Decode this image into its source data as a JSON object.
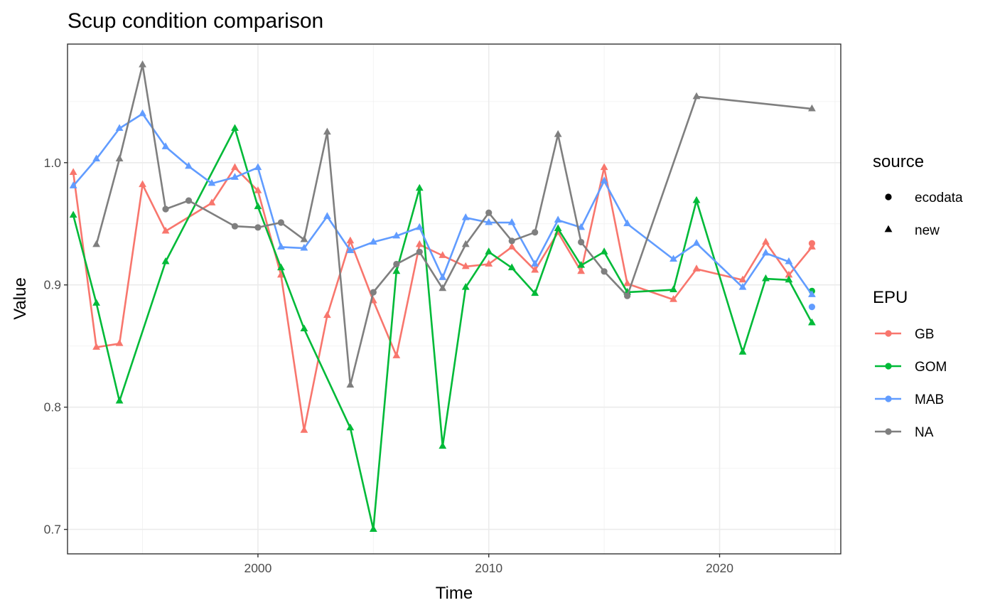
{
  "chart_data": {
    "type": "line",
    "title": "Scup condition comparison",
    "xlabel": "Time",
    "ylabel": "Value",
    "xlim": [
      1991.75,
      2025.25
    ],
    "ylim": [
      0.68,
      1.097
    ],
    "x_ticks": [
      2000,
      2010,
      2020
    ],
    "x_tick_labels": [
      "2000",
      "2010",
      "2020"
    ],
    "y_ticks": [
      0.7,
      0.8,
      0.9,
      1.0
    ],
    "y_tick_labels": [
      "0.7",
      "0.8",
      "0.9",
      "1.0"
    ],
    "grid": true,
    "legend": {
      "placement": "right",
      "source": {
        "title": "source",
        "entries": [
          {
            "label": "ecodata",
            "shape": "circle"
          },
          {
            "label": "new",
            "shape": "triangle"
          }
        ]
      },
      "epu": {
        "title": "EPU",
        "entries": [
          {
            "label": "GB",
            "color": "#F8766D"
          },
          {
            "label": "GOM",
            "color": "#00BA38"
          },
          {
            "label": "MAB",
            "color": "#619CFF"
          },
          {
            "label": "NA",
            "color": "#7F7F7F"
          }
        ]
      }
    },
    "series": [
      {
        "name": "GB",
        "color": "#F8766D",
        "x": [
          1992,
          1993,
          1994,
          1995,
          1996,
          1998,
          1999,
          2000,
          2001,
          2002,
          2003,
          2004,
          2005,
          2006,
          2007,
          2008,
          2009,
          2010,
          2011,
          2012,
          2013,
          2014,
          2015,
          2016,
          2018,
          2019,
          2021,
          2022,
          2023,
          2024
        ],
        "y": [
          0.992,
          0.849,
          0.852,
          0.982,
          0.944,
          0.967,
          0.996,
          0.977,
          0.908,
          0.781,
          0.875,
          0.936,
          0.887,
          0.842,
          0.933,
          0.924,
          0.915,
          0.917,
          0.931,
          0.912,
          0.943,
          0.911,
          0.996,
          0.901,
          0.888,
          0.913,
          0.904,
          0.935,
          0.908,
          0.931
        ],
        "source_points": {
          "ecodata": [
            [
              2024,
              0.934
            ]
          ]
        }
      },
      {
        "name": "GOM",
        "color": "#00BA38",
        "x": [
          1992,
          1993,
          1994,
          1996,
          1999,
          2000,
          2001,
          2002,
          2004,
          2005,
          2006,
          2007,
          2008,
          2009,
          2010,
          2011,
          2012,
          2013,
          2014,
          2015,
          2016,
          2018,
          2019,
          2021,
          2022,
          2023,
          2024
        ],
        "y": [
          0.957,
          0.885,
          0.805,
          0.919,
          1.028,
          0.964,
          0.914,
          0.864,
          0.783,
          0.7,
          0.911,
          0.979,
          0.768,
          0.898,
          0.927,
          0.914,
          0.893,
          0.946,
          0.916,
          0.927,
          0.894,
          0.896,
          0.969,
          0.845,
          0.905,
          0.904,
          0.869
        ],
        "source_points": {
          "ecodata": [
            [
              2024,
              0.895
            ]
          ]
        }
      },
      {
        "name": "MAB",
        "color": "#619CFF",
        "x": [
          1992,
          1993,
          1994,
          1995,
          1996,
          1997,
          1998,
          1999,
          2000,
          2001,
          2002,
          2003,
          2004,
          2005,
          2006,
          2007,
          2008,
          2009,
          2010,
          2011,
          2012,
          2013,
          2014,
          2015,
          2016,
          2018,
          2019,
          2021,
          2022,
          2023,
          2024
        ],
        "y": [
          0.981,
          1.003,
          1.028,
          1.04,
          1.013,
          0.997,
          0.983,
          0.988,
          0.996,
          0.931,
          0.93,
          0.956,
          0.928,
          0.935,
          0.94,
          0.947,
          0.906,
          0.955,
          0.951,
          0.951,
          0.917,
          0.953,
          0.947,
          0.985,
          0.95,
          0.921,
          0.934,
          0.898,
          0.926,
          0.919,
          0.892
        ],
        "source_points": {
          "ecodata": [
            [
              2024,
              0.882
            ]
          ]
        }
      },
      {
        "name": "NA",
        "color": "#7F7F7F",
        "x": [
          1993,
          1994,
          1995,
          1996,
          1997,
          1999,
          2000,
          2001,
          2002,
          2003,
          2004,
          2005,
          2006,
          2007,
          2008,
          2009,
          2010,
          2011,
          2012,
          2013,
          2014,
          2015,
          2016,
          2019,
          2024
        ],
        "y": [
          0.933,
          1.003,
          1.08,
          0.962,
          0.969,
          0.948,
          0.947,
          0.951,
          0.937,
          1.025,
          0.818,
          0.894,
          0.917,
          0.927,
          0.897,
          0.933,
          0.959,
          0.936,
          0.943,
          1.023,
          0.935,
          0.911,
          0.891,
          1.054,
          1.044
        ],
        "source_points": {
          "ecodata": [
            [
              1996,
              0.962
            ],
            [
              1997,
              0.969
            ],
            [
              1999,
              0.948
            ],
            [
              2000,
              0.947
            ],
            [
              2001,
              0.951
            ],
            [
              2005,
              0.894
            ],
            [
              2006,
              0.917
            ],
            [
              2007,
              0.927
            ],
            [
              2010,
              0.959
            ],
            [
              2011,
              0.936
            ],
            [
              2012,
              0.943
            ],
            [
              2014,
              0.935
            ],
            [
              2015,
              0.911
            ],
            [
              2016,
              0.891
            ]
          ]
        }
      }
    ]
  }
}
